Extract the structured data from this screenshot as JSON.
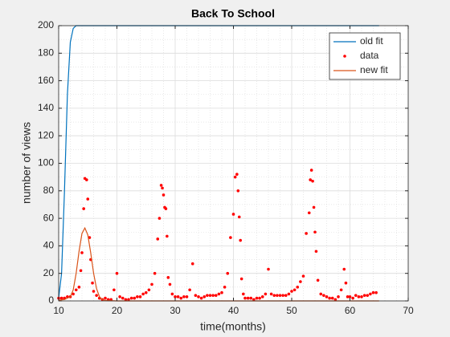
{
  "chart_data": {
    "type": "line",
    "title": "Back To School",
    "x_label": "time(months)",
    "y_label": "number of views",
    "xlim": [
      10,
      70
    ],
    "xticks": [
      10,
      20,
      30,
      40,
      50,
      60,
      70
    ],
    "ylim": [
      0,
      200
    ],
    "yticks": [
      0,
      20,
      40,
      60,
      80,
      100,
      120,
      140,
      160,
      180,
      200
    ],
    "grid": true,
    "minor_grid": true,
    "legend": "northeast",
    "series": [
      {
        "name": "old fit",
        "type": "line",
        "color": "#0072bd",
        "x": [
          10,
          10.5,
          11,
          11.5,
          12,
          12.5,
          13,
          14,
          65
        ],
        "values": [
          2,
          20,
          80,
          150,
          188,
          198,
          200,
          200,
          200
        ]
      },
      {
        "name": "data",
        "type": "scatter",
        "color": "#ff0000",
        "x": [
          10,
          10.5,
          11,
          11.5,
          12,
          12.5,
          13,
          13.5,
          13.8,
          14,
          14.3,
          14.5,
          14.8,
          15,
          15.3,
          15.5,
          15.8,
          16,
          16.5,
          17,
          17.5,
          18,
          18.5,
          19,
          19.5,
          20,
          20.5,
          21,
          21.5,
          22,
          22.5,
          23,
          23.5,
          24,
          24.5,
          25,
          25.5,
          26,
          26.5,
          27,
          27.3,
          27.6,
          27.8,
          28,
          28.2,
          28.4,
          28.6,
          28.8,
          29.1,
          29.5,
          30,
          30.5,
          31,
          31.5,
          32,
          32.5,
          33,
          33.5,
          34,
          34.5,
          35,
          35.5,
          36,
          36.5,
          37,
          37.5,
          38,
          38.5,
          39,
          39.5,
          40,
          40.3,
          40.6,
          40.8,
          41,
          41.2,
          41.4,
          41.7,
          42,
          42.5,
          43,
          43.5,
          44,
          44.5,
          45,
          45.5,
          46,
          46.5,
          47,
          47.5,
          48,
          48.5,
          49,
          49.5,
          50,
          50.5,
          51,
          51.5,
          52,
          52.5,
          53,
          53.2,
          53.4,
          53.6,
          53.8,
          54,
          54.2,
          54.5,
          55,
          55.5,
          56,
          56.5,
          57,
          57.5,
          58,
          58.5,
          59,
          59.3,
          59.6,
          60,
          60.5,
          61,
          61.5,
          62,
          62.5,
          63,
          63.5,
          64,
          64.5
        ],
        "values": [
          2,
          2,
          2,
          3,
          3,
          5,
          8,
          10,
          22,
          35,
          67,
          89,
          88,
          74,
          46,
          30,
          13,
          7,
          4,
          2,
          1,
          2,
          1,
          1,
          8,
          20,
          3,
          2,
          1,
          1,
          2,
          2,
          3,
          3,
          5,
          6,
          8,
          12,
          20,
          45,
          60,
          84,
          82,
          77,
          68,
          67,
          47,
          17,
          12,
          5,
          3,
          3,
          2,
          3,
          3,
          8,
          27,
          4,
          3,
          2,
          3,
          4,
          4,
          4,
          4,
          5,
          6,
          10,
          20,
          46,
          63,
          90,
          92,
          80,
          61,
          44,
          16,
          5,
          2,
          2,
          2,
          1,
          2,
          2,
          3,
          5,
          23,
          5,
          4,
          4,
          4,
          4,
          4,
          5,
          7,
          8,
          10,
          14,
          18,
          49,
          64,
          88,
          95,
          87,
          68,
          50,
          36,
          15,
          5,
          4,
          3,
          2,
          2,
          1,
          3,
          8,
          23,
          13,
          3,
          3,
          2,
          4,
          3,
          3,
          4,
          4,
          5,
          6,
          6
        ]
      },
      {
        "name": "new fit",
        "type": "line",
        "color": "#d95319",
        "x": [
          10,
          11,
          12,
          12.5,
          13,
          13.5,
          14,
          14.5,
          15,
          15.5,
          16,
          16.5,
          17,
          17.5,
          18,
          20,
          65
        ],
        "values": [
          0.5,
          1,
          3,
          8,
          20,
          36,
          49,
          53,
          48,
          35,
          20,
          9,
          3,
          1,
          0.3,
          0,
          0
        ]
      }
    ]
  }
}
